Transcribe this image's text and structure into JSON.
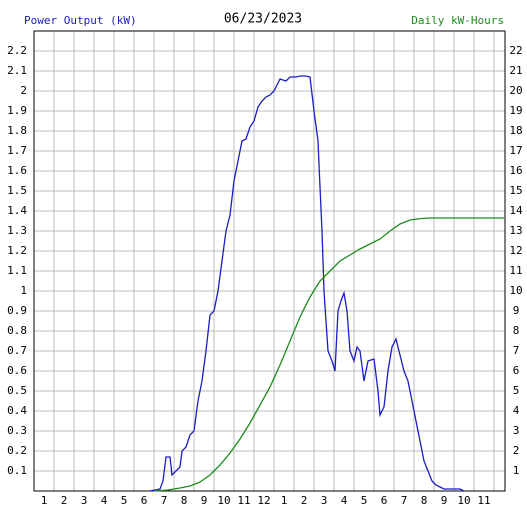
{
  "chart_data": {
    "type": "line",
    "title": "06/23/2023",
    "ylabel": "Power Output (kW)",
    "y2label": "Daily kW-Hours",
    "xlim": [
      0.5,
      24.05
    ],
    "ylim": [
      0,
      2.3
    ],
    "y2lim": [
      0,
      23
    ],
    "xticks": [
      1,
      2,
      3,
      4,
      5,
      6,
      7,
      8,
      9,
      10,
      11,
      12,
      {
        "value": 13,
        "label": "1"
      },
      {
        "value": 14,
        "label": "2"
      },
      {
        "value": 15,
        "label": "3"
      },
      {
        "value": 16,
        "label": "4"
      },
      {
        "value": 17,
        "label": "5"
      },
      {
        "value": 18,
        "label": "6"
      },
      {
        "value": 19,
        "label": "7"
      },
      {
        "value": 20,
        "label": "8"
      },
      {
        "value": 21,
        "label": "9"
      },
      {
        "value": 22,
        "label": "10"
      },
      {
        "value": 23,
        "label": "11"
      }
    ],
    "yticks": [
      0.1,
      0.2,
      0.3,
      0.4,
      0.5,
      0.6,
      0.7,
      0.8,
      0.9,
      1.0,
      1.1,
      1.2,
      1.3,
      1.4,
      1.5,
      1.6,
      1.7,
      1.8,
      1.9,
      2.0,
      2.1,
      2.2
    ],
    "y2ticks": [
      1,
      2,
      3,
      4,
      5,
      6,
      7,
      8,
      9,
      10,
      11,
      12,
      13,
      14,
      15,
      16,
      17,
      18,
      19,
      20,
      21,
      22
    ],
    "grid": true,
    "series": [
      {
        "name": "Power Output (kW)",
        "color": "#1c1cc8",
        "axis": "y",
        "x": [
          6.3,
          6.8,
          6.95,
          7.1,
          7.3,
          7.4,
          7.6,
          7.8,
          7.9,
          8.1,
          8.3,
          8.5,
          8.7,
          8.9,
          9.1,
          9.3,
          9.5,
          9.7,
          9.9,
          10.1,
          10.3,
          10.5,
          10.7,
          10.9,
          11.1,
          11.3,
          11.5,
          11.7,
          11.9,
          12.1,
          12.3,
          12.5,
          12.8,
          13.1,
          13.3,
          13.6,
          13.8,
          14.1,
          14.3,
          14.5,
          14.7,
          14.8,
          14.9,
          15.0,
          15.2,
          15.4,
          15.55,
          15.7,
          15.85,
          16.0,
          16.15,
          16.3,
          16.5,
          16.65,
          16.8,
          17.0,
          17.2,
          17.5,
          17.7,
          17.8,
          18.0,
          18.2,
          18.4,
          18.6,
          18.8,
          19.0,
          19.2,
          19.4,
          19.6,
          19.8,
          20.0,
          20.2,
          20.4,
          20.6,
          20.8,
          21.0,
          21.8,
          22.0
        ],
        "values": [
          0,
          0.01,
          0.05,
          0.17,
          0.17,
          0.08,
          0.1,
          0.12,
          0.2,
          0.22,
          0.28,
          0.3,
          0.45,
          0.55,
          0.7,
          0.88,
          0.9,
          1.0,
          1.15,
          1.3,
          1.38,
          1.55,
          1.65,
          1.75,
          1.76,
          1.82,
          1.85,
          1.92,
          1.95,
          1.97,
          1.98,
          2.0,
          2.06,
          2.05,
          2.07,
          2.07,
          2.075,
          2.075,
          2.07,
          1.9,
          1.75,
          1.52,
          1.3,
          1.0,
          0.7,
          0.65,
          0.6,
          0.9,
          0.95,
          0.99,
          0.9,
          0.7,
          0.65,
          0.72,
          0.7,
          0.55,
          0.65,
          0.66,
          0.5,
          0.38,
          0.42,
          0.6,
          0.72,
          0.76,
          0.68,
          0.6,
          0.55,
          0.45,
          0.35,
          0.25,
          0.15,
          0.1,
          0.05,
          0.03,
          0.02,
          0.01,
          0.01,
          0
        ]
      },
      {
        "name": "Daily kW-Hours",
        "color": "#1e8c1e",
        "axis": "y2",
        "x": [
          6.5,
          7.2,
          7.8,
          8.3,
          8.8,
          9.3,
          9.8,
          10.3,
          10.8,
          11.3,
          11.8,
          12.3,
          12.8,
          13.3,
          13.8,
          14.3,
          14.8,
          15.3,
          15.8,
          16.3,
          16.8,
          17.3,
          17.8,
          18.3,
          18.8,
          19.3,
          19.8,
          20.3,
          20.8,
          24.05
        ],
        "values": [
          0,
          0.05,
          0.15,
          0.25,
          0.45,
          0.8,
          1.3,
          1.9,
          2.6,
          3.4,
          4.3,
          5.2,
          6.3,
          7.5,
          8.7,
          9.7,
          10.5,
          11.0,
          11.5,
          11.8,
          12.1,
          12.35,
          12.6,
          13.0,
          13.35,
          13.55,
          13.62,
          13.65,
          13.65,
          13.65
        ]
      }
    ]
  }
}
